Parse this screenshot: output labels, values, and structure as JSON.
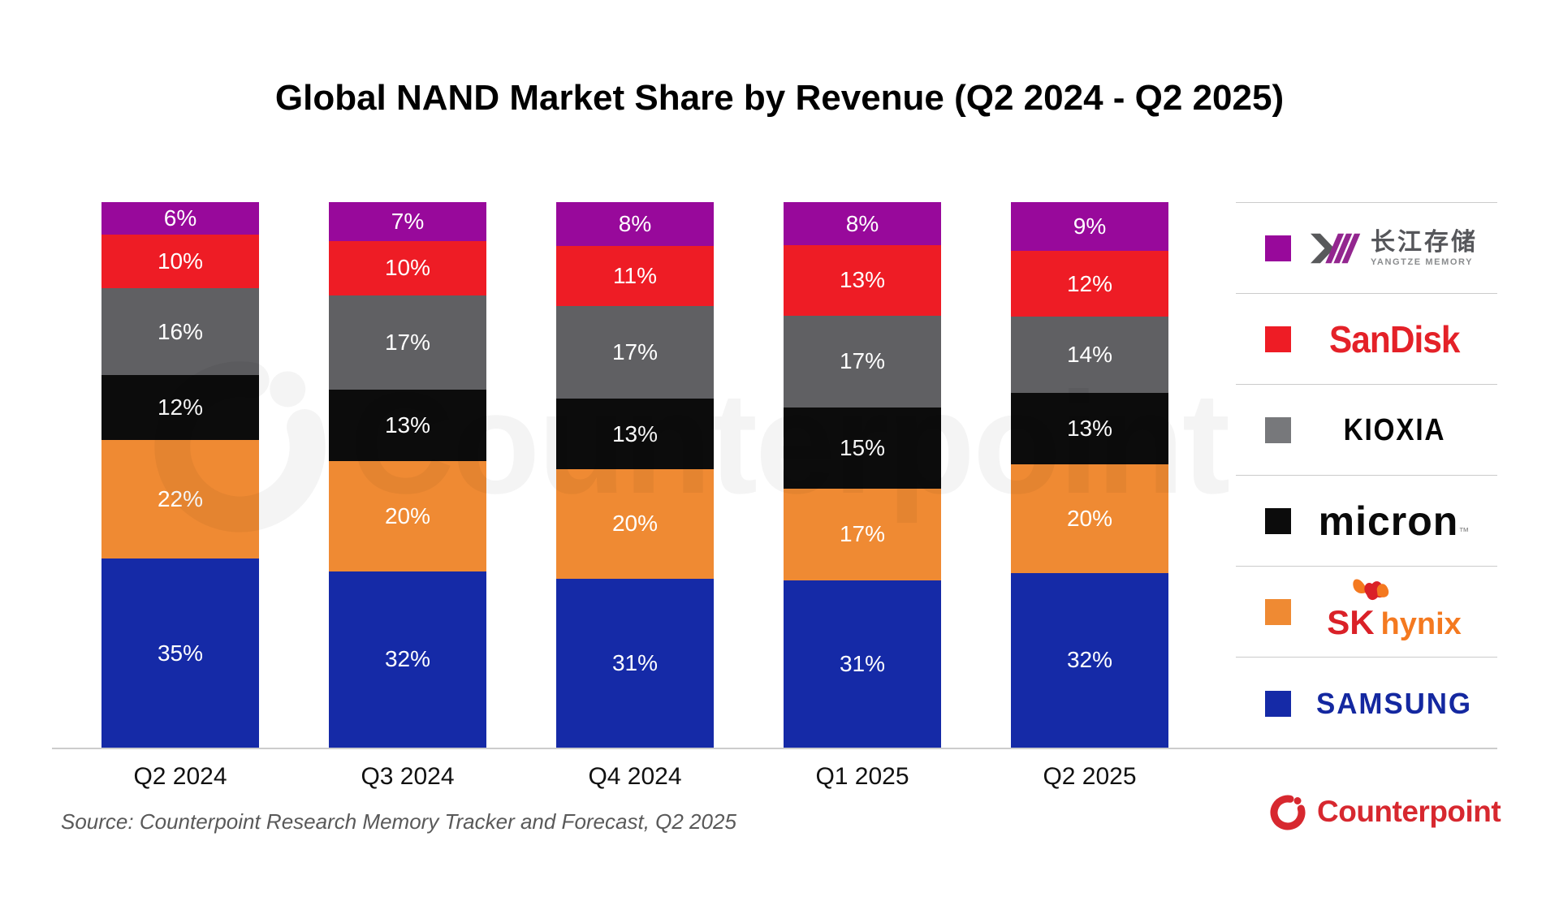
{
  "title": "Global NAND Market Share by Revenue (Q2 2024 - Q2 2025)",
  "watermark_text": "Counterpoint",
  "source_note": "Source: Counterpoint Research Memory Tracker and Forecast, Q2 2025",
  "footer_brand": {
    "name": "Counterpoint",
    "color": "#D7282F"
  },
  "chart_data": {
    "type": "bar",
    "stacked": true,
    "percent_normalized": true,
    "grid": false,
    "legend_position": "right",
    "value_suffix": "%",
    "show_value_labels": true,
    "categories": [
      "Q2 2024",
      "Q3 2024",
      "Q4 2024",
      "Q1 2025",
      "Q2 2025"
    ],
    "series": [
      {
        "name": "Samsung",
        "color": "#152AA7",
        "values": [
          35,
          32,
          31,
          31,
          32
        ]
      },
      {
        "name": "SK hynix",
        "color": "#EF8A33",
        "values": [
          22,
          20,
          20,
          17,
          20
        ]
      },
      {
        "name": "Micron",
        "color": "#0C0C0C",
        "values": [
          12,
          13,
          13,
          15,
          13
        ]
      },
      {
        "name": "Kioxia",
        "color": "#606063",
        "values": [
          16,
          17,
          17,
          17,
          14
        ]
      },
      {
        "name": "SanDisk",
        "color": "#EE1C25",
        "values": [
          10,
          10,
          11,
          13,
          12
        ]
      },
      {
        "name": "Yangtze Memory",
        "color": "#98099B",
        "values": [
          6,
          7,
          8,
          8,
          9
        ]
      }
    ],
    "stack_top_to_bottom": [
      "Yangtze Memory",
      "SanDisk",
      "Kioxia",
      "Micron",
      "SK hynix",
      "Samsung"
    ],
    "label_color": "#ffffff"
  },
  "legend": {
    "items": [
      {
        "name": "Yangtze Memory",
        "swatch": "#98099B",
        "logo_text": "长江存储",
        "logo_subtext": "YANGTZE MEMORY"
      },
      {
        "name": "SanDisk",
        "swatch": "#EE1C25",
        "logo_text": "SanDisk"
      },
      {
        "name": "Kioxia",
        "swatch": "#77787B",
        "logo_text": "KIOXIA"
      },
      {
        "name": "Micron",
        "swatch": "#0C0C0C",
        "logo_text": "micron",
        "logo_tm": "™"
      },
      {
        "name": "SK hynix",
        "swatch": "#EF8A33",
        "logo_text_sk": "SK",
        "logo_text_hynix": "hynix"
      },
      {
        "name": "Samsung",
        "swatch": "#152AA7",
        "logo_text": "SAMSUNG"
      }
    ]
  }
}
